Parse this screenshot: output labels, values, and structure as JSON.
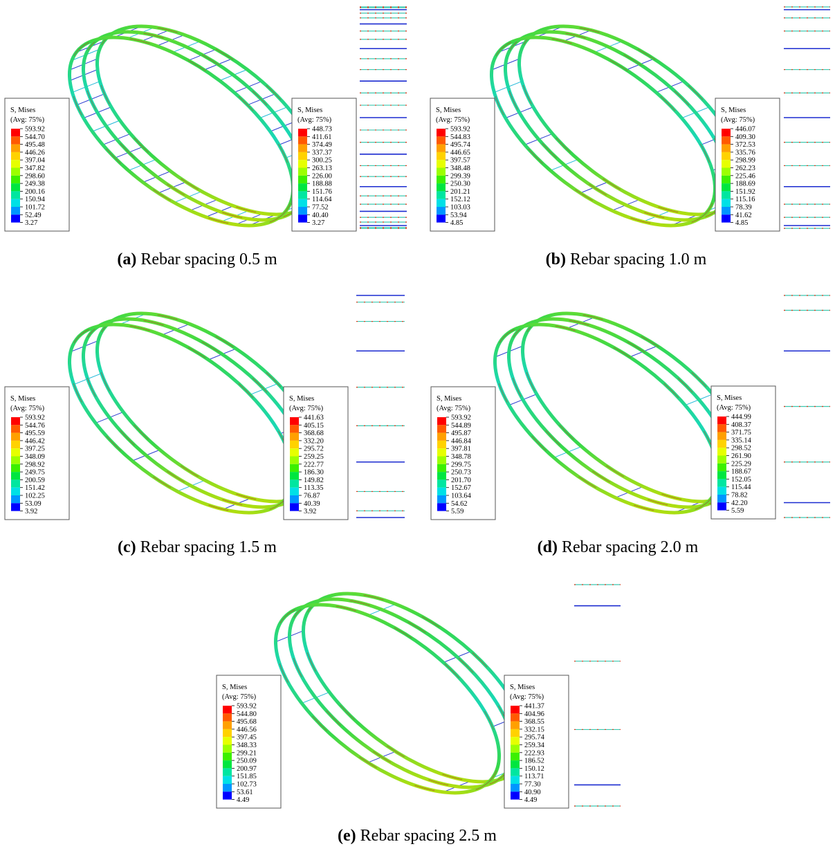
{
  "panels": [
    {
      "label": "(a)",
      "caption": "Rebar spacing 0.5 m",
      "legends": [
        {
          "title": "S, Mises",
          "subtitle": "(Avg: 75%)",
          "values": [
            "593.92",
            "544.70",
            "495.48",
            "446.26",
            "397.04",
            "347.82",
            "298.60",
            "249.38",
            "200.16",
            "150.94",
            "101.72",
            "52.49",
            "3.27"
          ]
        },
        {
          "title": "S, Mises",
          "subtitle": "(Avg: 75%)",
          "values": [
            "448.73",
            "411.61",
            "374.49",
            "337.37",
            "300.25",
            "263.13",
            "226.00",
            "188.88",
            "151.76",
            "114.64",
            "77.52",
            "40.40",
            "3.27"
          ]
        }
      ]
    },
    {
      "label": "(b)",
      "caption": "Rebar spacing 1.0 m",
      "legends": [
        {
          "title": "S, Mises",
          "subtitle": "(Avg: 75%)",
          "values": [
            "593.92",
            "544.83",
            "495.74",
            "446.65",
            "397.57",
            "348.48",
            "299.39",
            "250.30",
            "201.21",
            "152.12",
            "103.03",
            "53.94",
            "4.85"
          ]
        },
        {
          "title": "S, Mises",
          "subtitle": "(Avg: 75%)",
          "values": [
            "446.07",
            "409.30",
            "372.53",
            "335.76",
            "298.99",
            "262.23",
            "225.46",
            "188.69",
            "151.92",
            "115.16",
            "78.39",
            "41.62",
            "4.85"
          ]
        }
      ]
    },
    {
      "label": "(c)",
      "caption": "Rebar spacing 1.5 m",
      "legends": [
        {
          "title": "S, Mises",
          "subtitle": "(Avg: 75%)",
          "values": [
            "593.92",
            "544.76",
            "495.59",
            "446.42",
            "397.25",
            "348.09",
            "298.92",
            "249.75",
            "200.59",
            "151.42",
            "102.25",
            "53.09",
            "3.92"
          ]
        },
        {
          "title": "S, Mises",
          "subtitle": "(Avg: 75%)",
          "values": [
            "441.63",
            "405.15",
            "368.68",
            "332.20",
            "295.72",
            "259.25",
            "222.77",
            "186.30",
            "149.82",
            "113.35",
            "76.87",
            "40.39",
            "3.92"
          ]
        }
      ]
    },
    {
      "label": "(d)",
      "caption": "Rebar spacing 2.0 m",
      "legends": [
        {
          "title": "S, Mises",
          "subtitle": "(Avg: 75%)",
          "values": [
            "593.92",
            "544.89",
            "495.87",
            "446.84",
            "397.81",
            "348.78",
            "299.75",
            "250.73",
            "201.70",
            "152.67",
            "103.64",
            "54.62",
            "5.59"
          ]
        },
        {
          "title": "S, Mises",
          "subtitle": "(Avg: 75%)",
          "values": [
            "444.99",
            "408.37",
            "371.75",
            "335.14",
            "298.52",
            "261.90",
            "225.29",
            "188.67",
            "152.05",
            "115.44",
            "78.82",
            "42.20",
            "5.59"
          ]
        }
      ]
    },
    {
      "label": "(e)",
      "caption": "Rebar spacing 2.5 m",
      "legends": [
        {
          "title": "S, Mises",
          "subtitle": "(Avg: 75%)",
          "values": [
            "593.92",
            "544.80",
            "495.68",
            "446.56",
            "397.45",
            "348.33",
            "299.21",
            "250.09",
            "200.97",
            "151.85",
            "102.73",
            "53.61",
            "4.49"
          ]
        },
        {
          "title": "S, Mises",
          "subtitle": "(Avg: 75%)",
          "values": [
            "441.37",
            "404.96",
            "368.55",
            "332.15",
            "295.74",
            "259.34",
            "222.93",
            "186.52",
            "150.12",
            "113.71",
            "77.30",
            "40.90",
            "4.49"
          ]
        }
      ]
    }
  ]
}
